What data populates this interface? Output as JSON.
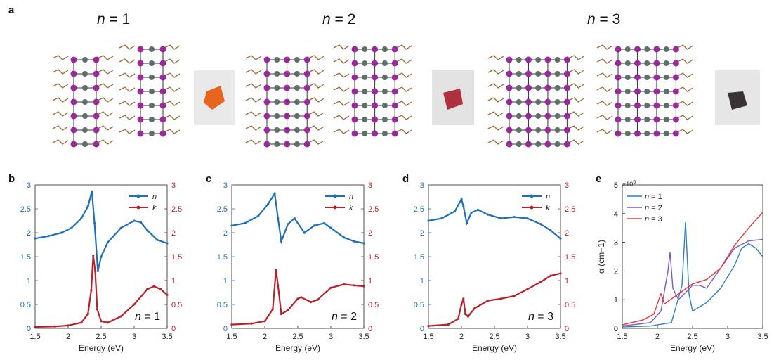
{
  "panel_labels": {
    "a": "a",
    "b": "b",
    "c": "c",
    "d": "d",
    "e": "e"
  },
  "structures": [
    {
      "n_symbol": "n",
      "eq": " = 1",
      "crystal_color": "#e8651e"
    },
    {
      "n_symbol": "n",
      "eq": " = 2",
      "crystal_color": "#b0303f"
    },
    {
      "n_symbol": "n",
      "eq": " = 3",
      "crystal_color": "#3a3336"
    }
  ],
  "colors": {
    "n_axis": "#1f6fb6",
    "k_axis": "#b8212a"
  },
  "chart_data": [
    {
      "type": "line",
      "xlabel": "Energy (eV)",
      "xlim": [
        1.5,
        3.5
      ],
      "xticks": [
        "1.5",
        "2",
        "2.5",
        "3",
        "3.5"
      ],
      "ylim_left": [
        0,
        3
      ],
      "ylim_right": [
        0,
        3
      ],
      "yticks": [
        "0",
        "0.5",
        "1",
        "1.5",
        "2",
        "2.5",
        "3"
      ],
      "annotation": "n = 1",
      "legend": [
        "n",
        "k"
      ],
      "series": [
        {
          "name": "n",
          "x": [
            1.5,
            1.7,
            1.9,
            2.05,
            2.2,
            2.3,
            2.36,
            2.4,
            2.45,
            2.5,
            2.6,
            2.8,
            3.0,
            3.1,
            3.2,
            3.35,
            3.5
          ],
          "y": [
            1.88,
            1.93,
            2.0,
            2.1,
            2.3,
            2.55,
            2.86,
            2.2,
            1.2,
            1.5,
            1.8,
            2.1,
            2.25,
            2.22,
            2.05,
            1.85,
            1.78
          ]
        },
        {
          "name": "k",
          "x": [
            1.5,
            1.8,
            2.0,
            2.2,
            2.3,
            2.35,
            2.38,
            2.41,
            2.44,
            2.5,
            2.6,
            2.8,
            3.0,
            3.2,
            3.3,
            3.4,
            3.5
          ],
          "y": [
            0.03,
            0.04,
            0.06,
            0.12,
            0.3,
            0.8,
            1.52,
            1.2,
            0.4,
            0.15,
            0.12,
            0.25,
            0.5,
            0.82,
            0.88,
            0.82,
            0.7
          ]
        }
      ]
    },
    {
      "type": "line",
      "xlabel": "Energy (eV)",
      "xlim": [
        1.5,
        3.5
      ],
      "xticks": [
        "1.5",
        "2",
        "2.5",
        "3",
        "3.5"
      ],
      "ylim_left": [
        0,
        3
      ],
      "ylim_right": [
        0,
        3
      ],
      "yticks": [
        "0",
        "0.5",
        "1",
        "1.5",
        "2",
        "2.5",
        "3"
      ],
      "annotation": "n = 2",
      "legend": [
        "n",
        "k"
      ],
      "series": [
        {
          "name": "n",
          "x": [
            1.5,
            1.7,
            1.9,
            2.05,
            2.15,
            2.2,
            2.25,
            2.35,
            2.45,
            2.6,
            2.75,
            2.9,
            3.0,
            3.2,
            3.35,
            3.5
          ],
          "y": [
            2.15,
            2.2,
            2.35,
            2.6,
            2.82,
            2.3,
            1.82,
            2.18,
            2.3,
            2.0,
            2.15,
            2.2,
            2.1,
            1.9,
            1.82,
            1.78
          ]
        },
        {
          "name": "k",
          "x": [
            1.5,
            1.8,
            2.0,
            2.12,
            2.17,
            2.2,
            2.25,
            2.35,
            2.5,
            2.55,
            2.7,
            2.8,
            3.0,
            3.2,
            3.35,
            3.5
          ],
          "y": [
            0.08,
            0.1,
            0.15,
            0.4,
            1.22,
            0.9,
            0.3,
            0.38,
            0.62,
            0.65,
            0.55,
            0.6,
            0.85,
            0.92,
            0.9,
            0.88
          ]
        }
      ]
    },
    {
      "type": "line",
      "xlabel": "Energy (eV)",
      "xlim": [
        1.5,
        3.5
      ],
      "xticks": [
        "1.5",
        "2",
        "2.5",
        "3",
        "3.5"
      ],
      "ylim_left": [
        0,
        3
      ],
      "ylim_right": [
        0,
        3
      ],
      "yticks": [
        "0",
        "0.5",
        "1",
        "1.5",
        "2",
        "2.5",
        "3"
      ],
      "annotation": "n = 3",
      "legend": [
        "n",
        "k"
      ],
      "series": [
        {
          "name": "n",
          "x": [
            1.5,
            1.7,
            1.9,
            2.0,
            2.03,
            2.08,
            2.15,
            2.25,
            2.4,
            2.6,
            2.8,
            3.0,
            3.2,
            3.35,
            3.5
          ],
          "y": [
            2.25,
            2.3,
            2.45,
            2.7,
            2.55,
            2.2,
            2.42,
            2.48,
            2.38,
            2.3,
            2.33,
            2.3,
            2.18,
            2.05,
            1.88
          ]
        },
        {
          "name": "k",
          "x": [
            1.5,
            1.8,
            1.95,
            2.0,
            2.03,
            2.06,
            2.1,
            2.2,
            2.4,
            2.6,
            2.8,
            3.0,
            3.2,
            3.35,
            3.5
          ],
          "y": [
            0.05,
            0.08,
            0.2,
            0.5,
            0.62,
            0.3,
            0.25,
            0.42,
            0.58,
            0.62,
            0.68,
            0.82,
            0.97,
            1.1,
            1.15
          ]
        }
      ]
    },
    {
      "type": "line",
      "xlabel": "Energy (eV)",
      "ylabel": "α (cm−1)",
      "exponent": "×10",
      "exponent_power": "5",
      "xlim": [
        1.5,
        3.5
      ],
      "xticks": [
        "1.5",
        "2",
        "2.5",
        "3",
        "3.5"
      ],
      "ylim": [
        0,
        5
      ],
      "yticks": [
        "0",
        "1",
        "2",
        "3",
        "4",
        "5"
      ],
      "legend": [
        "n = 1",
        "n = 2",
        "n = 3"
      ],
      "series": [
        {
          "name": "n = 1",
          "color": "#2f7fc1",
          "x": [
            1.5,
            1.9,
            2.2,
            2.35,
            2.4,
            2.45,
            2.5,
            2.7,
            2.9,
            3.1,
            3.2,
            3.3,
            3.4,
            3.5
          ],
          "y": [
            0.05,
            0.08,
            0.2,
            1.5,
            3.7,
            1.2,
            0.6,
            0.9,
            1.4,
            2.2,
            2.8,
            2.95,
            2.8,
            2.5
          ]
        },
        {
          "name": "n = 2",
          "color": "#7b57c0",
          "x": [
            1.5,
            1.9,
            2.05,
            2.15,
            2.18,
            2.22,
            2.3,
            2.5,
            2.6,
            2.7,
            2.9,
            3.1,
            3.3,
            3.5
          ],
          "y": [
            0.08,
            0.2,
            0.6,
            2.0,
            2.65,
            1.4,
            1.0,
            1.5,
            1.5,
            1.4,
            2.1,
            2.8,
            3.05,
            3.1
          ]
        },
        {
          "name": "n = 3",
          "color": "#e0383b",
          "x": [
            1.5,
            1.8,
            1.95,
            2.02,
            2.05,
            2.1,
            2.3,
            2.5,
            2.7,
            2.9,
            3.1,
            3.3,
            3.5
          ],
          "y": [
            0.12,
            0.3,
            0.5,
            1.0,
            1.2,
            0.85,
            1.2,
            1.55,
            1.7,
            2.1,
            2.9,
            3.5,
            4.05
          ]
        }
      ]
    }
  ]
}
